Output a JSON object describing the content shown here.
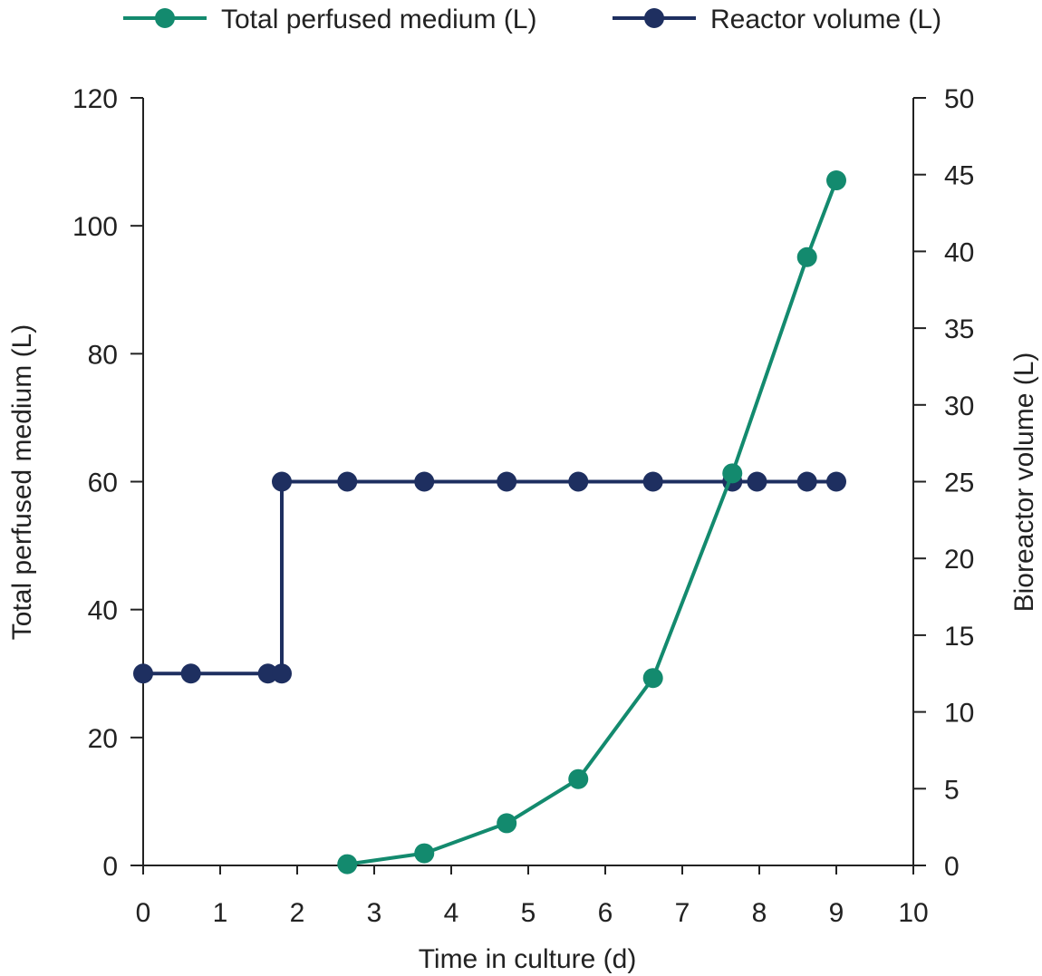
{
  "chart_data": {
    "type": "line",
    "title": "",
    "xlabel": "Time in culture (d)",
    "ylabel_left": "Total perfused medium (L)",
    "ylabel_right": "Bioreactor volume (L)",
    "xlim": [
      0,
      10
    ],
    "ylim_left": [
      0,
      120
    ],
    "ylim_right": [
      0,
      50
    ],
    "x_ticks": [
      "0",
      "1",
      "2",
      "3",
      "4",
      "5",
      "6",
      "7",
      "8",
      "9",
      "10"
    ],
    "y_left_ticks": [
      "0",
      "20",
      "40",
      "60",
      "80",
      "100",
      "120"
    ],
    "y_right_ticks": [
      "0",
      "5",
      "10",
      "15",
      "20",
      "25",
      "30",
      "35",
      "40",
      "45",
      "50"
    ],
    "grid": false,
    "legend_position": "top",
    "series": [
      {
        "name": "Total perfused medium (L)",
        "axis": "left",
        "color": "#138a6e",
        "step": false,
        "x": [
          2.65,
          3.65,
          4.72,
          5.65,
          6.62,
          7.65,
          8.62,
          9.0
        ],
        "y": [
          0.2,
          1.9,
          6.6,
          13.5,
          29.3,
          61.3,
          95.1,
          107.1
        ]
      },
      {
        "name": "Reactor volume (L)",
        "axis": "right",
        "color": "#1e2f60",
        "step": true,
        "x": [
          0.0,
          0.62,
          1.62,
          1.8,
          1.8,
          2.65,
          3.65,
          4.72,
          5.65,
          6.62,
          7.65,
          7.97,
          8.62,
          9.0
        ],
        "y": [
          12.5,
          12.5,
          12.5,
          12.5,
          25,
          25,
          25,
          25,
          25,
          25,
          25,
          25,
          25,
          25
        ]
      }
    ]
  }
}
